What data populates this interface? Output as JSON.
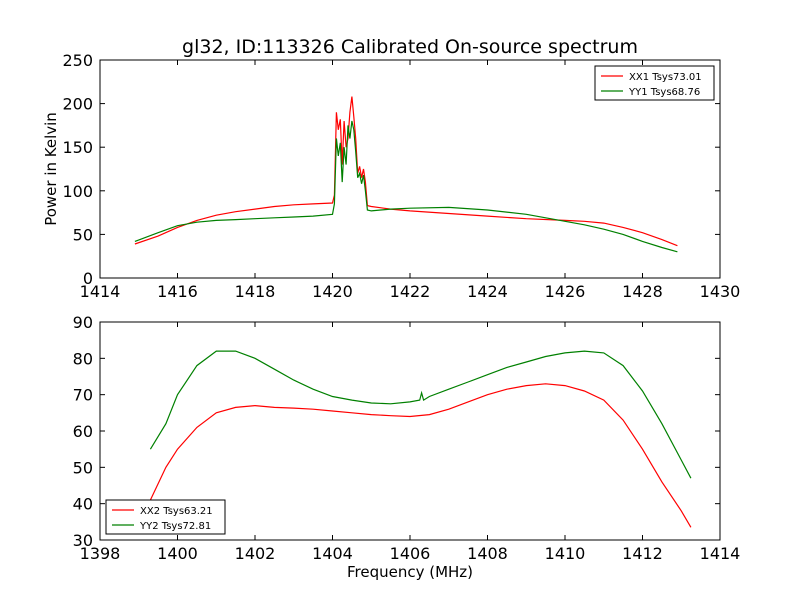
{
  "title": "gl32, ID:113326 Calibrated On-source spectrum",
  "chart_data": [
    {
      "type": "line",
      "ylabel": "Power in Kelvin",
      "xlabel": "",
      "xlim": [
        1414,
        1430
      ],
      "ylim": [
        0,
        250
      ],
      "xticks": [
        1414,
        1416,
        1418,
        1420,
        1422,
        1424,
        1426,
        1428,
        1430
      ],
      "yticks": [
        0,
        50,
        100,
        150,
        200,
        250
      ],
      "legend_position": "top-right",
      "series": [
        {
          "name": "XX1 Tsys73.01",
          "color": "#ff0000",
          "x": [
            1414.9,
            1415.5,
            1416,
            1416.5,
            1417,
            1417.5,
            1418,
            1418.5,
            1419,
            1419.5,
            1420,
            1420.05,
            1420.1,
            1420.15,
            1420.2,
            1420.25,
            1420.3,
            1420.35,
            1420.4,
            1420.45,
            1420.5,
            1420.55,
            1420.6,
            1420.65,
            1420.7,
            1420.75,
            1420.8,
            1420.85,
            1420.9,
            1421,
            1421.5,
            1422,
            1423,
            1424,
            1425,
            1426,
            1426.5,
            1427,
            1427.5,
            1428,
            1428.5,
            1428.9
          ],
          "y": [
            39,
            48,
            58,
            66,
            72,
            76,
            79,
            82,
            84,
            85,
            86,
            95,
            190,
            170,
            182,
            130,
            180,
            150,
            160,
            190,
            208,
            185,
            160,
            120,
            128,
            115,
            125,
            110,
            83,
            82,
            79,
            77,
            74,
            71,
            68,
            66,
            65,
            63,
            58,
            52,
            44,
            37
          ]
        },
        {
          "name": "YY1 Tsys68.76",
          "color": "#008000",
          "x": [
            1414.9,
            1415.5,
            1416,
            1416.5,
            1417,
            1417.5,
            1418,
            1418.5,
            1419,
            1419.5,
            1420,
            1420.05,
            1420.1,
            1420.15,
            1420.2,
            1420.25,
            1420.3,
            1420.35,
            1420.4,
            1420.45,
            1420.5,
            1420.55,
            1420.6,
            1420.65,
            1420.7,
            1420.75,
            1420.8,
            1420.85,
            1420.9,
            1421,
            1421.5,
            1422,
            1423,
            1424,
            1425,
            1426,
            1426.5,
            1427,
            1427.5,
            1428,
            1428.5,
            1428.9
          ],
          "y": [
            42,
            52,
            60,
            64,
            66,
            67,
            68,
            69,
            70,
            71,
            73,
            85,
            160,
            140,
            155,
            110,
            150,
            130,
            175,
            160,
            180,
            170,
            145,
            115,
            120,
            108,
            118,
            100,
            78,
            77,
            79,
            80,
            81,
            78,
            73,
            65,
            61,
            56,
            50,
            42,
            35,
            30
          ]
        }
      ]
    },
    {
      "type": "line",
      "ylabel": "",
      "xlabel": "Frequency (MHz)",
      "xlim": [
        1398,
        1414
      ],
      "ylim": [
        30,
        90
      ],
      "xticks": [
        1398,
        1400,
        1402,
        1404,
        1406,
        1408,
        1410,
        1412,
        1414
      ],
      "yticks": [
        30,
        40,
        50,
        60,
        70,
        80,
        90
      ],
      "legend_position": "bottom-left",
      "series": [
        {
          "name": "XX2 Tsys63.21",
          "color": "#ff0000",
          "x": [
            1399.3,
            1399.7,
            1400.0,
            1400.5,
            1401.0,
            1401.5,
            1402.0,
            1402.5,
            1403.0,
            1403.5,
            1404.0,
            1404.5,
            1405.0,
            1405.5,
            1406.0,
            1406.5,
            1407.0,
            1407.5,
            1408.0,
            1408.5,
            1409.0,
            1409.5,
            1410.0,
            1410.5,
            1411.0,
            1411.5,
            1412.0,
            1412.5,
            1413.0,
            1413.25
          ],
          "y": [
            41,
            50,
            55,
            61,
            65,
            66.5,
            67,
            66.5,
            66.3,
            66,
            65.5,
            65,
            64.5,
            64.2,
            64,
            64.5,
            66,
            68,
            70,
            71.5,
            72.5,
            73,
            72.5,
            71,
            68.5,
            63,
            55,
            46,
            38,
            33.5
          ]
        },
        {
          "name": "YY2 Tsys72.81",
          "color": "#008000",
          "x": [
            1399.3,
            1399.7,
            1400.0,
            1400.5,
            1401.0,
            1401.5,
            1402.0,
            1402.5,
            1403.0,
            1403.5,
            1404.0,
            1404.5,
            1405.0,
            1405.5,
            1406.0,
            1406.25,
            1406.3,
            1406.35,
            1406.5,
            1407.0,
            1407.5,
            1408.0,
            1408.5,
            1409.0,
            1409.5,
            1410.0,
            1410.5,
            1411.0,
            1411.5,
            1412.0,
            1412.5,
            1413.0,
            1413.25
          ],
          "y": [
            55,
            62,
            70,
            78,
            82,
            82,
            80,
            77,
            74,
            71.5,
            69.5,
            68.5,
            67.7,
            67.5,
            68,
            68.5,
            70.5,
            68.5,
            69.5,
            71.5,
            73.5,
            75.5,
            77.5,
            79,
            80.5,
            81.5,
            82,
            81.5,
            78,
            71,
            62,
            52,
            47
          ]
        }
      ]
    }
  ]
}
